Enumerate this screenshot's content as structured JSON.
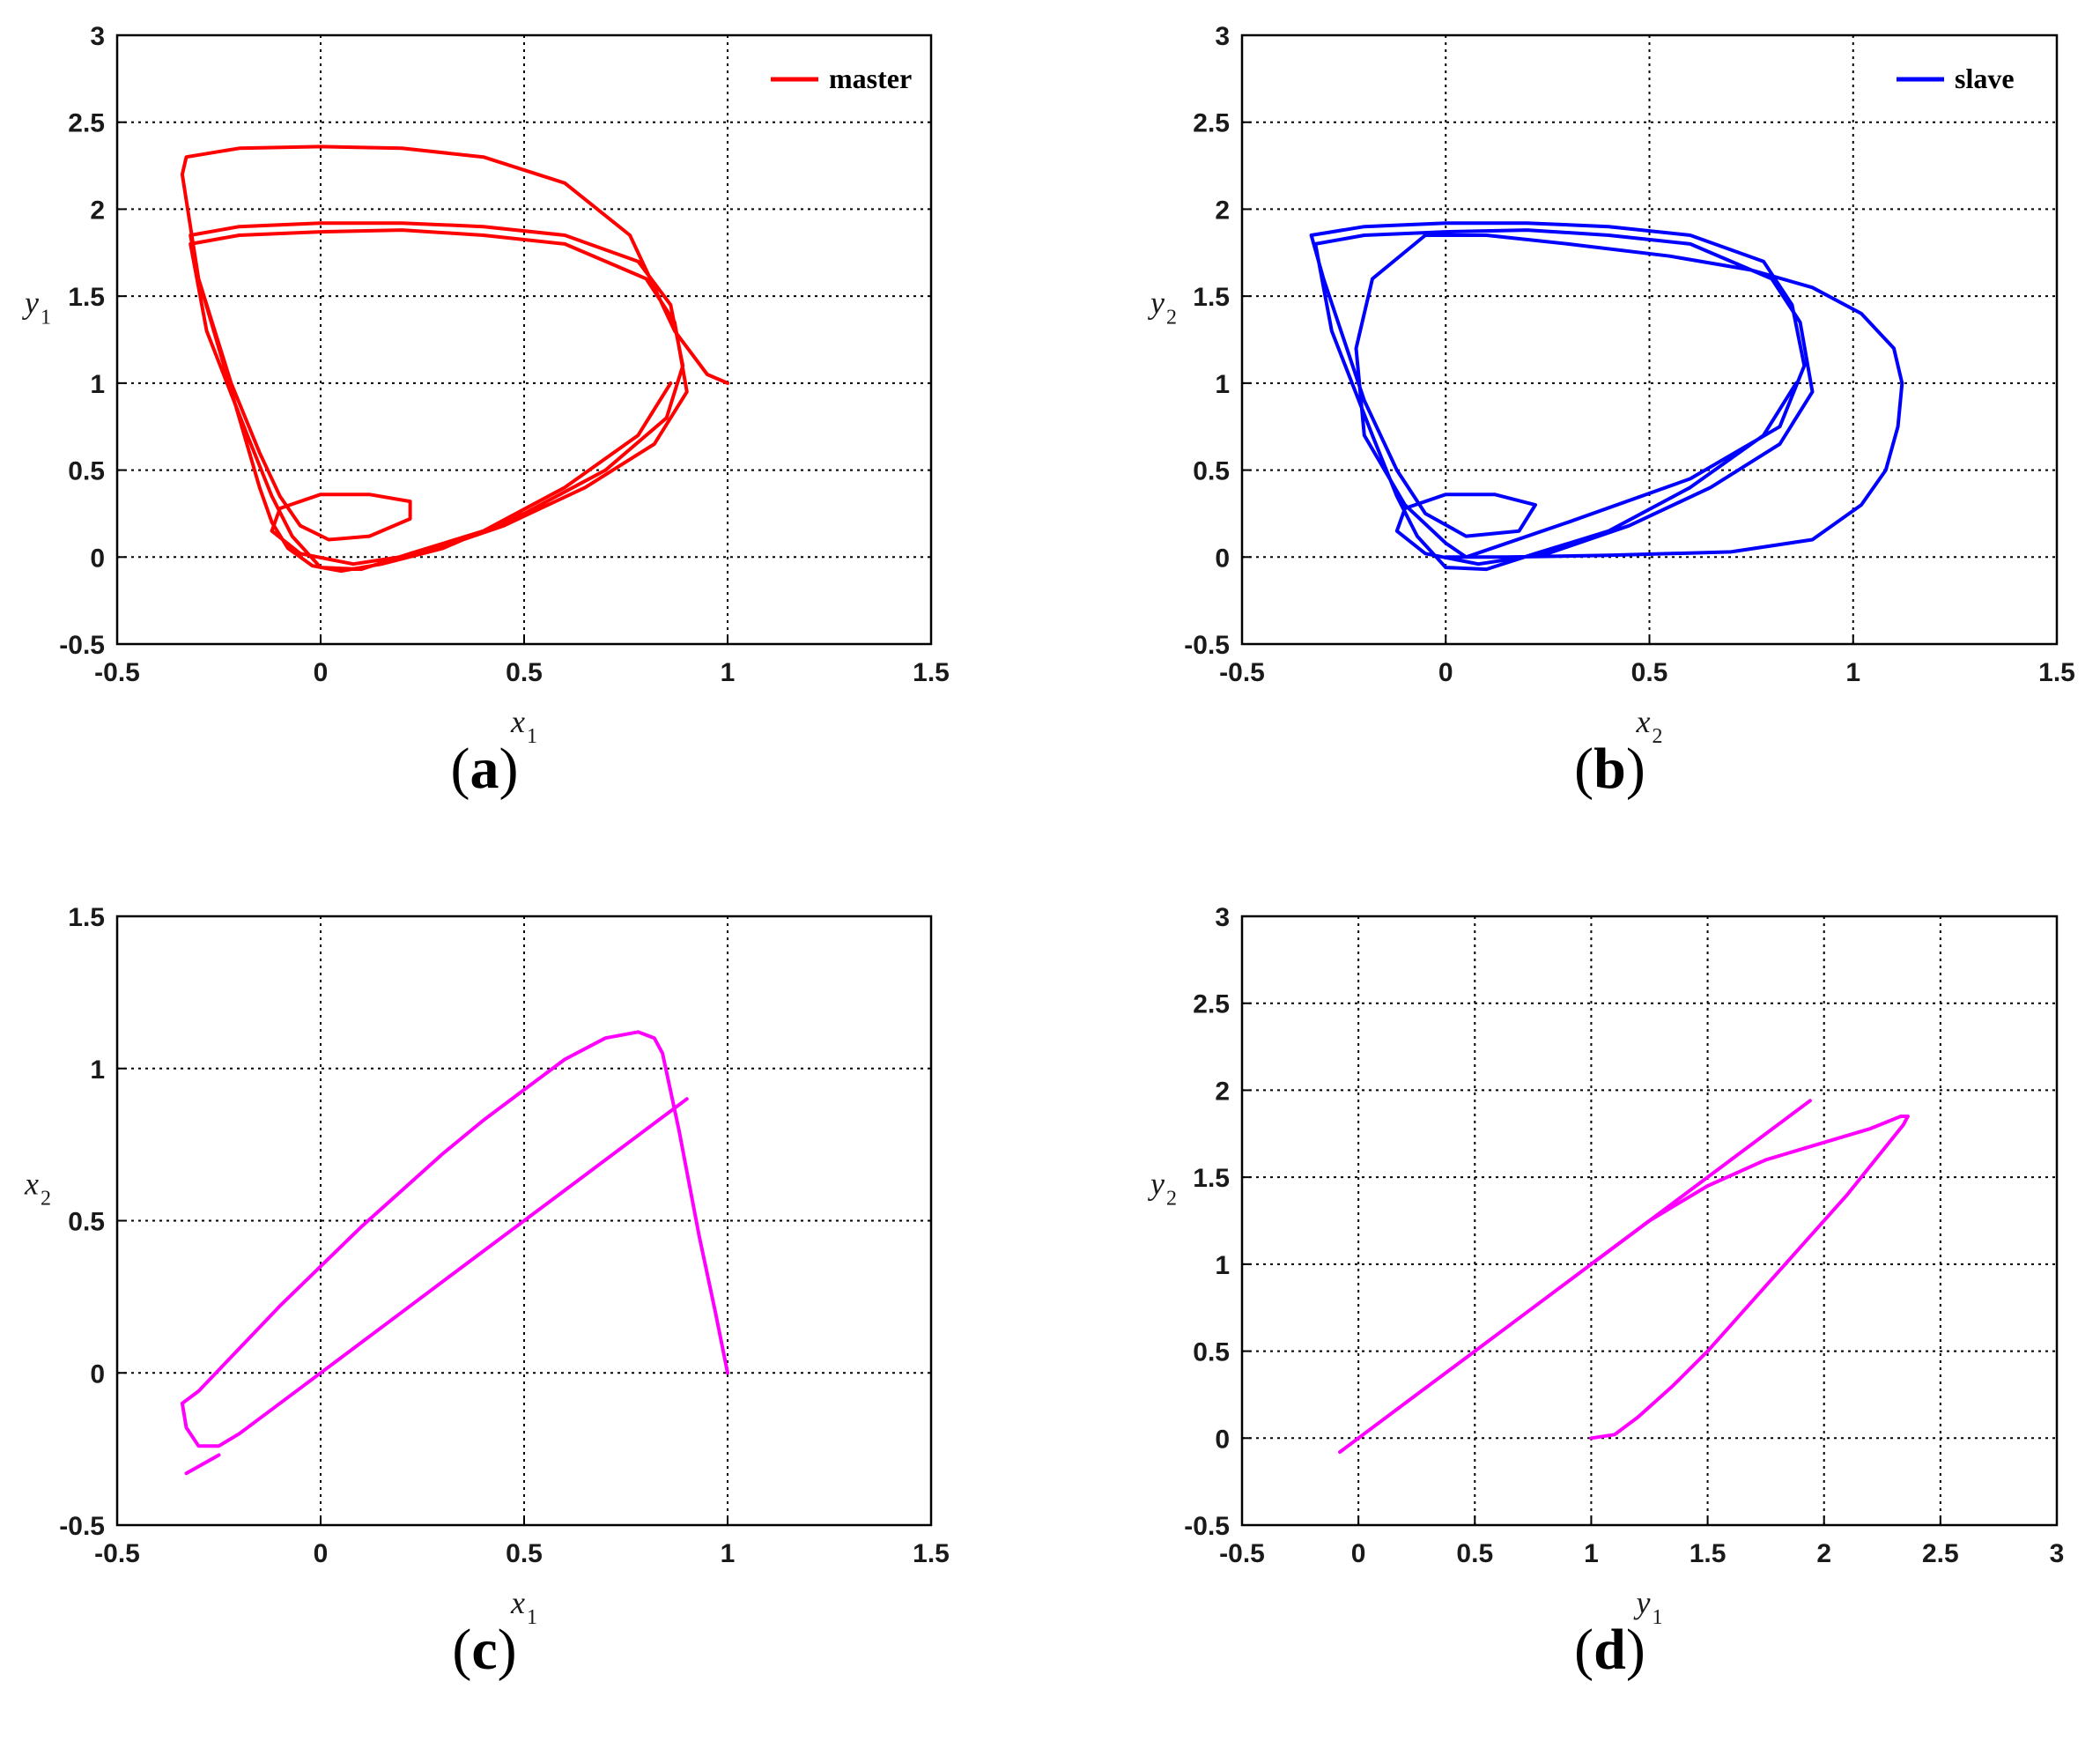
{
  "chart_data": [
    {
      "type": "line",
      "panel_label": "a",
      "xlabel": "x",
      "xlabel_sub": "1",
      "ylabel": "y",
      "ylabel_sub": "1",
      "xlim": [
        -0.5,
        1.5
      ],
      "ylim": [
        -0.5,
        3
      ],
      "xticks": [
        -0.5,
        0,
        0.5,
        1,
        1.5
      ],
      "yticks": [
        -0.5,
        0,
        0.5,
        1,
        1.5,
        2,
        2.5,
        3
      ],
      "grid": true,
      "legend": {
        "position": "top-right",
        "entries": [
          "master"
        ]
      },
      "series": [
        {
          "name": "master",
          "color": "#ff0000",
          "x": [
            1.0,
            0.95,
            0.87,
            0.76,
            0.6,
            0.4,
            0.2,
            0.0,
            -0.2,
            -0.33,
            -0.34,
            -0.3,
            -0.2,
            -0.15,
            -0.12,
            -0.08,
            -0.02,
            0.05,
            0.15,
            0.3,
            0.5,
            0.7,
            0.85,
            0.89,
            0.86,
            0.78,
            0.6,
            0.4,
            0.2,
            0.0,
            -0.2,
            -0.32,
            -0.3,
            -0.22,
            -0.15,
            -0.1,
            -0.05,
            0.02,
            0.12,
            0.22,
            0.22,
            0.12,
            0.0,
            -0.1,
            -0.12,
            -0.05,
            0.08,
            0.25,
            0.45,
            0.65,
            0.82,
            0.9,
            0.87,
            0.8,
            0.6,
            0.4,
            0.2,
            0.0,
            -0.2,
            -0.32,
            -0.28,
            -0.18,
            -0.12,
            -0.07,
            0.0,
            0.1,
            0.22,
            0.4,
            0.6,
            0.78,
            0.86
          ],
          "y": [
            1.0,
            1.05,
            1.3,
            1.85,
            2.15,
            2.3,
            2.35,
            2.36,
            2.35,
            2.3,
            2.2,
            1.6,
            0.8,
            0.4,
            0.2,
            0.05,
            -0.05,
            -0.08,
            -0.04,
            0.05,
            0.25,
            0.5,
            0.8,
            1.1,
            1.45,
            1.7,
            1.85,
            1.9,
            1.92,
            1.92,
            1.9,
            1.85,
            1.6,
            1.0,
            0.6,
            0.35,
            0.18,
            0.1,
            0.12,
            0.22,
            0.32,
            0.36,
            0.36,
            0.28,
            0.15,
            0.02,
            -0.04,
            0.02,
            0.18,
            0.4,
            0.65,
            0.95,
            1.35,
            1.6,
            1.8,
            1.85,
            1.88,
            1.87,
            1.85,
            1.8,
            1.3,
            0.7,
            0.35,
            0.12,
            -0.06,
            -0.07,
            0.02,
            0.15,
            0.4,
            0.7,
            1.0
          ]
        }
      ]
    },
    {
      "type": "line",
      "panel_label": "b",
      "xlabel": "x",
      "xlabel_sub": "2",
      "ylabel": "y",
      "ylabel_sub": "2",
      "xlim": [
        -0.5,
        1.5
      ],
      "ylim": [
        -0.5,
        3
      ],
      "xticks": [
        -0.5,
        0,
        0.5,
        1,
        1.5
      ],
      "yticks": [
        -0.5,
        0,
        0.5,
        1,
        1.5,
        2,
        2.5,
        3
      ],
      "grid": true,
      "legend": {
        "position": "top-right",
        "entries": [
          "slave"
        ]
      },
      "series": [
        {
          "name": "slave",
          "color": "#0000ff",
          "x": [
            0.0,
            0.15,
            0.4,
            0.7,
            0.9,
            1.02,
            1.08,
            1.11,
            1.12,
            1.1,
            1.02,
            0.9,
            0.75,
            0.55,
            0.3,
            0.1,
            -0.05,
            -0.18,
            -0.22,
            -0.2,
            -0.1,
            0.0,
            0.05,
            0.3,
            0.6,
            0.82,
            0.88,
            0.85,
            0.78,
            0.6,
            0.4,
            0.2,
            0.0,
            -0.2,
            -0.33,
            -0.3,
            -0.2,
            -0.12,
            -0.05,
            0.05,
            0.18,
            0.22,
            0.12,
            0.0,
            -0.1,
            -0.12,
            -0.05,
            0.08,
            0.25,
            0.45,
            0.65,
            0.82,
            0.9,
            0.87,
            0.8,
            0.6,
            0.4,
            0.2,
            0.0,
            -0.2,
            -0.32,
            -0.28,
            -0.18,
            -0.12,
            -0.07,
            0.0,
            0.1,
            0.22,
            0.4,
            0.6,
            0.78,
            0.86
          ],
          "y": [
            0.0,
            0.0,
            0.01,
            0.03,
            0.1,
            0.3,
            0.5,
            0.75,
            1.0,
            1.2,
            1.4,
            1.55,
            1.65,
            1.73,
            1.8,
            1.85,
            1.85,
            1.6,
            1.2,
            0.7,
            0.3,
            0.08,
            0.0,
            0.2,
            0.45,
            0.75,
            1.1,
            1.45,
            1.7,
            1.85,
            1.9,
            1.92,
            1.92,
            1.9,
            1.85,
            1.6,
            0.9,
            0.5,
            0.25,
            0.12,
            0.15,
            0.3,
            0.36,
            0.36,
            0.28,
            0.15,
            0.02,
            -0.04,
            0.02,
            0.18,
            0.4,
            0.65,
            0.95,
            1.35,
            1.6,
            1.8,
            1.85,
            1.88,
            1.87,
            1.85,
            1.8,
            1.3,
            0.7,
            0.35,
            0.12,
            -0.06,
            -0.07,
            0.02,
            0.15,
            0.4,
            0.7,
            1.0
          ]
        }
      ]
    },
    {
      "type": "line",
      "panel_label": "c",
      "xlabel": "x",
      "xlabel_sub": "1",
      "ylabel": "x",
      "ylabel_sub": "2",
      "xlim": [
        -0.5,
        1.5
      ],
      "ylim": [
        -0.5,
        1.5
      ],
      "xticks": [
        -0.5,
        0,
        0.5,
        1,
        1.5
      ],
      "yticks": [
        -0.5,
        0,
        0.5,
        1,
        1.5
      ],
      "grid": true,
      "series": [
        {
          "name": "",
          "color": "#ff00ff",
          "x": [
            1.0,
            0.97,
            0.93,
            0.88,
            0.84,
            0.82,
            0.8,
            0.78,
            0.7,
            0.6,
            0.5,
            0.4,
            0.3,
            0.2,
            0.1,
            0.0,
            -0.1,
            -0.2,
            -0.3,
            -0.34,
            -0.33,
            -0.3,
            -0.25,
            -0.2,
            -0.1,
            0.0,
            0.2,
            0.4,
            0.6,
            0.8,
            0.9
          ],
          "y": [
            0.0,
            0.2,
            0.45,
            0.8,
            1.05,
            1.1,
            1.11,
            1.12,
            1.1,
            1.03,
            0.93,
            0.83,
            0.72,
            0.6,
            0.48,
            0.35,
            0.22,
            0.08,
            -0.06,
            -0.1,
            -0.18,
            -0.24,
            -0.24,
            -0.2,
            -0.1,
            0.0,
            0.2,
            0.4,
            0.6,
            0.8,
            0.9
          ]
        },
        {
          "name": "",
          "color": "#ff00ff",
          "x": [
            -0.33,
            -0.25
          ],
          "y": [
            -0.33,
            -0.27
          ]
        }
      ]
    },
    {
      "type": "line",
      "panel_label": "d",
      "xlabel": "y",
      "xlabel_sub": "1",
      "ylabel": "y",
      "ylabel_sub": "2",
      "xlim": [
        -0.5,
        3
      ],
      "ylim": [
        -0.5,
        3
      ],
      "xticks": [
        -0.5,
        0,
        0.5,
        1,
        1.5,
        2,
        2.5,
        3
      ],
      "yticks": [
        -0.5,
        0,
        0.5,
        1,
        1.5,
        2,
        2.5,
        3
      ],
      "grid": true,
      "series": [
        {
          "name": "",
          "color": "#ff00ff",
          "x": [
            1.0,
            1.1,
            1.2,
            1.35,
            1.5,
            1.7,
            1.9,
            2.1,
            2.25,
            2.34,
            2.36,
            2.33,
            2.2,
            2.0,
            1.75,
            1.5,
            1.25,
            1.0,
            0.75,
            0.5,
            0.25,
            0.0,
            -0.08
          ],
          "y": [
            0.0,
            0.02,
            0.12,
            0.3,
            0.5,
            0.8,
            1.1,
            1.4,
            1.65,
            1.8,
            1.85,
            1.85,
            1.78,
            1.7,
            1.6,
            1.45,
            1.25,
            1.0,
            0.75,
            0.5,
            0.25,
            0.0,
            -0.08
          ]
        },
        {
          "name": "",
          "color": "#ff00ff",
          "x": [
            1.0,
            1.5,
            1.94
          ],
          "y": [
            1.0,
            1.5,
            1.94
          ]
        }
      ]
    }
  ]
}
